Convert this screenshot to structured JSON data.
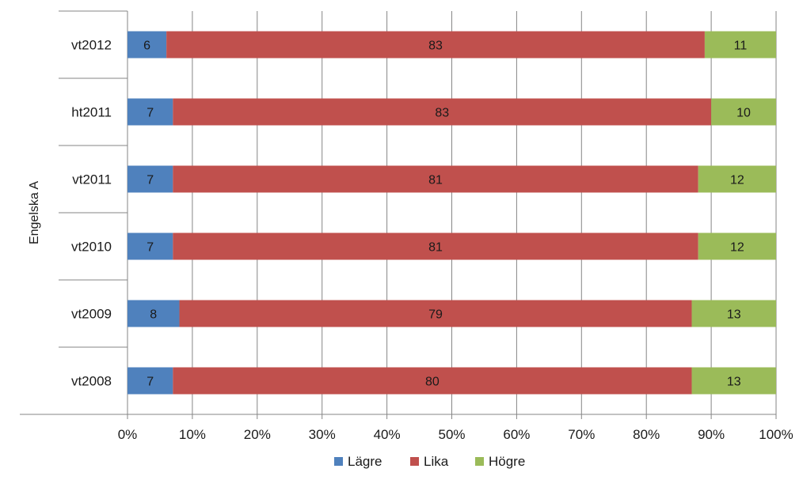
{
  "chart_data": {
    "type": "bar",
    "orientation": "horizontal",
    "stacked": "percent",
    "group_label": "Engelska A",
    "categories": [
      "vt2012",
      "ht2011",
      "vt2011",
      "vt2010",
      "vt2009",
      "vt2008"
    ],
    "series": [
      {
        "name": "Lägre",
        "color": "#4f81bd",
        "values": [
          6,
          7,
          7,
          7,
          8,
          7
        ]
      },
      {
        "name": "Lika",
        "color": "#c0504d",
        "values": [
          83,
          83,
          81,
          81,
          79,
          80
        ]
      },
      {
        "name": "Högre",
        "color": "#9bbb59",
        "values": [
          11,
          10,
          12,
          12,
          13,
          13
        ]
      }
    ],
    "xlim": [
      0,
      100
    ],
    "x_ticks": [
      "0%",
      "10%",
      "20%",
      "30%",
      "40%",
      "50%",
      "60%",
      "70%",
      "80%",
      "90%",
      "100%"
    ],
    "gridlines": "vertical",
    "legend": "bottom"
  }
}
